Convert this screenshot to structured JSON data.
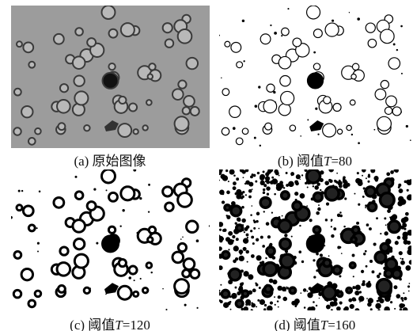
{
  "panels": [
    {
      "caption": [
        "(a) 原始图像"
      ]
    },
    {
      "caption": [
        "(b) 阈值",
        "T",
        "=80"
      ]
    },
    {
      "caption": [
        "(c) 阈值",
        "T",
        "=120"
      ]
    },
    {
      "caption": [
        "(d) 阈值",
        "T",
        "=160"
      ]
    }
  ]
}
